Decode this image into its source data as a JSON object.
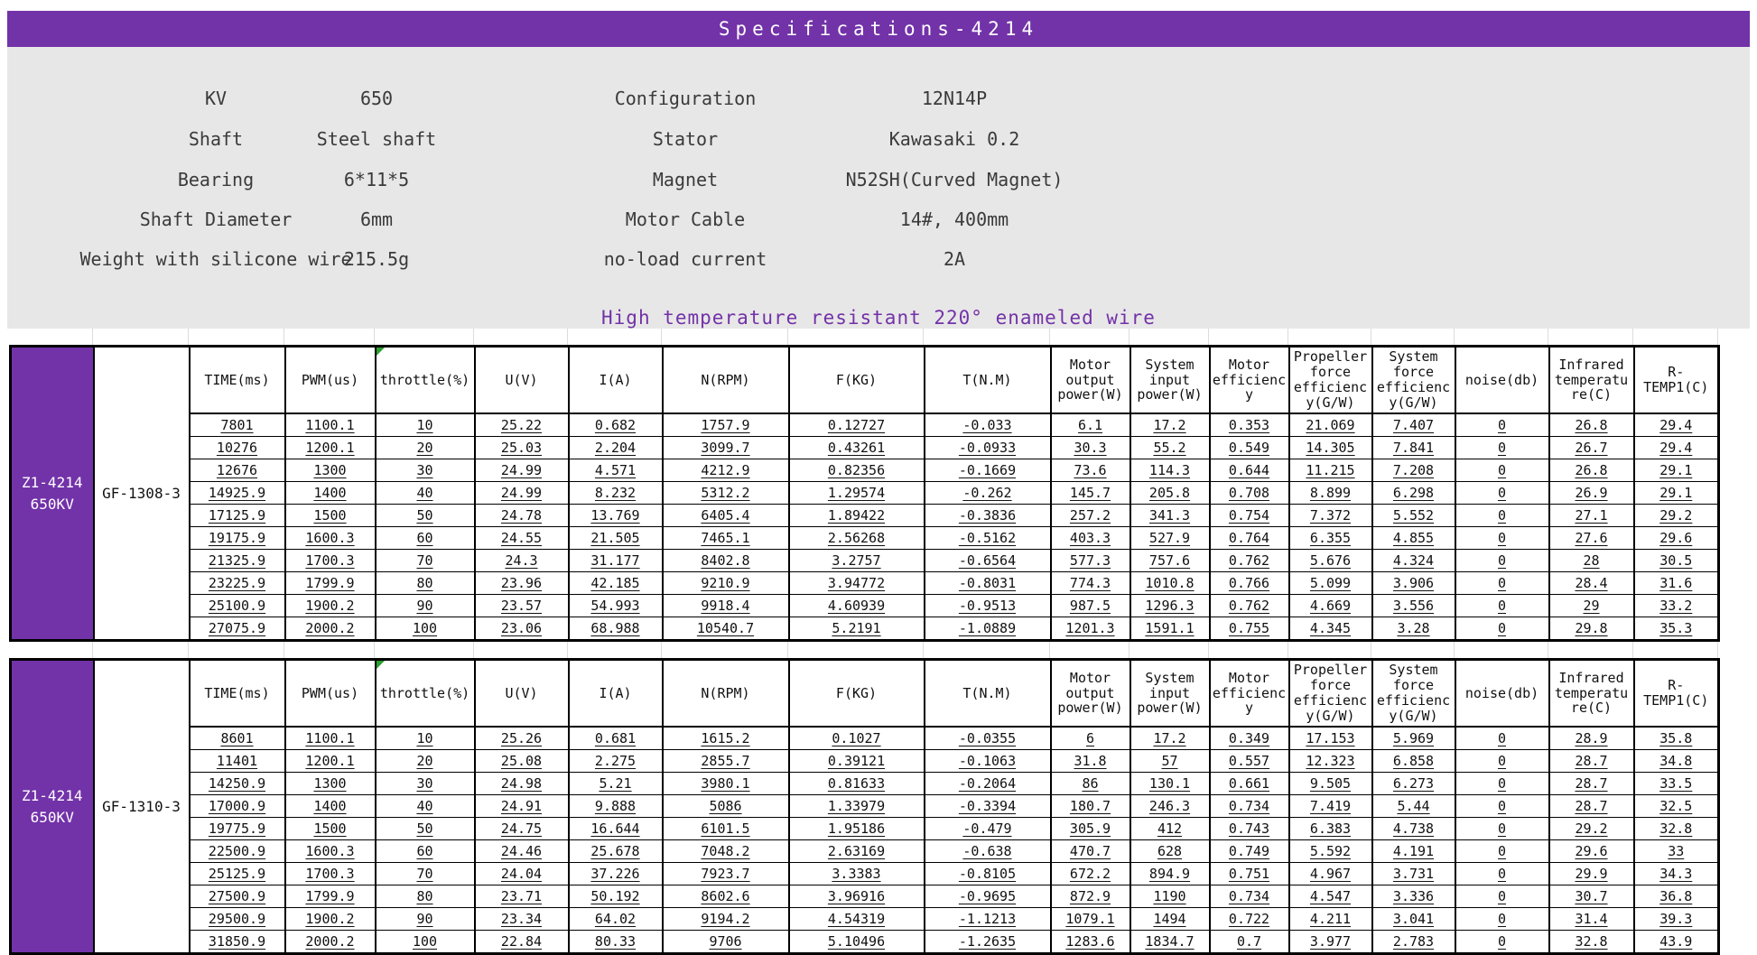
{
  "title": "Specifications-4214",
  "subtitle": "High temperature resistant 220° enameled wire",
  "colors": {
    "accent_purple": "#7232a8",
    "panel_gray": "#e8e7e7",
    "comment_flag_green": "#2e9e30",
    "table_border": "#000000"
  },
  "specs": {
    "left": [
      {
        "label": "KV",
        "value": "650"
      },
      {
        "label": "Shaft",
        "value": "Steel shaft"
      },
      {
        "label": "Bearing",
        "value": "6*11*5"
      },
      {
        "label": "Shaft Diameter",
        "value": "6mm"
      },
      {
        "label": "Weight with silicone wire",
        "value": "215.5g"
      }
    ],
    "right": [
      {
        "label": "Configuration",
        "value": "12N14P"
      },
      {
        "label": "Stator",
        "value": "Kawasaki 0.2"
      },
      {
        "label": "Magnet",
        "value": "N52SH(Curved Magnet)"
      },
      {
        "label": "Motor Cable",
        "value": "14#, 400mm"
      },
      {
        "label": "no-load current",
        "value": "2A"
      }
    ]
  },
  "table_headers": [
    "TIME(ms)",
    "PWM(us)",
    "throttle(%)",
    "U(V)",
    "I(A)",
    "N(RPM)",
    "F(KG)",
    "T(N.M)",
    "Motor output power(W)",
    "System input power(W)",
    "Motor efficiency",
    "Propeller force efficiency(G/W)",
    "System force efficiency(G/W)",
    "noise(db)",
    "Infrared temperature(C)",
    "R-TEMP1(C)"
  ],
  "tables": [
    {
      "motor_line1": "Z1-4214",
      "motor_line2": "650KV",
      "model": "GF-1308-3",
      "rows": [
        [
          "7801",
          "1100.1",
          "10",
          "25.22",
          "0.682",
          "1757.9",
          "0.12727",
          "-0.033",
          "6.1",
          "17.2",
          "0.353",
          "21.069",
          "7.407",
          "0",
          "26.8",
          "29.4"
        ],
        [
          "10276",
          "1200.1",
          "20",
          "25.03",
          "2.204",
          "3099.7",
          "0.43261",
          "-0.0933",
          "30.3",
          "55.2",
          "0.549",
          "14.305",
          "7.841",
          "0",
          "26.7",
          "29.4"
        ],
        [
          "12676",
          "1300",
          "30",
          "24.99",
          "4.571",
          "4212.9",
          "0.82356",
          "-0.1669",
          "73.6",
          "114.3",
          "0.644",
          "11.215",
          "7.208",
          "0",
          "26.8",
          "29.1"
        ],
        [
          "14925.9",
          "1400",
          "40",
          "24.99",
          "8.232",
          "5312.2",
          "1.29574",
          "-0.262",
          "145.7",
          "205.8",
          "0.708",
          "8.899",
          "6.298",
          "0",
          "26.9",
          "29.1"
        ],
        [
          "17125.9",
          "1500",
          "50",
          "24.78",
          "13.769",
          "6405.4",
          "1.89422",
          "-0.3836",
          "257.2",
          "341.3",
          "0.754",
          "7.372",
          "5.552",
          "0",
          "27.1",
          "29.2"
        ],
        [
          "19175.9",
          "1600.3",
          "60",
          "24.55",
          "21.505",
          "7465.1",
          "2.56268",
          "-0.5162",
          "403.3",
          "527.9",
          "0.764",
          "6.355",
          "4.855",
          "0",
          "27.6",
          "29.6"
        ],
        [
          "21325.9",
          "1700.3",
          "70",
          "24.3",
          "31.177",
          "8402.8",
          "3.2757",
          "-0.6564",
          "577.3",
          "757.6",
          "0.762",
          "5.676",
          "4.324",
          "0",
          "28",
          "30.5"
        ],
        [
          "23225.9",
          "1799.9",
          "80",
          "23.96",
          "42.185",
          "9210.9",
          "3.94772",
          "-0.8031",
          "774.3",
          "1010.8",
          "0.766",
          "5.099",
          "3.906",
          "0",
          "28.4",
          "31.6"
        ],
        [
          "25100.9",
          "1900.2",
          "90",
          "23.57",
          "54.993",
          "9918.4",
          "4.60939",
          "-0.9513",
          "987.5",
          "1296.3",
          "0.762",
          "4.669",
          "3.556",
          "0",
          "29",
          "33.2"
        ],
        [
          "27075.9",
          "2000.2",
          "100",
          "23.06",
          "68.988",
          "10540.7",
          "5.2191",
          "-1.0889",
          "1201.3",
          "1591.1",
          "0.755",
          "4.345",
          "3.28",
          "0",
          "29.8",
          "35.3"
        ]
      ]
    },
    {
      "motor_line1": "Z1-4214",
      "motor_line2": "650KV",
      "model": "GF-1310-3",
      "rows": [
        [
          "8601",
          "1100.1",
          "10",
          "25.26",
          "0.681",
          "1615.2",
          "0.1027",
          "-0.0355",
          "6",
          "17.2",
          "0.349",
          "17.153",
          "5.969",
          "0",
          "28.9",
          "35.8"
        ],
        [
          "11401",
          "1200.1",
          "20",
          "25.08",
          "2.275",
          "2855.7",
          "0.39121",
          "-0.1063",
          "31.8",
          "57",
          "0.557",
          "12.323",
          "6.858",
          "0",
          "28.7",
          "34.8"
        ],
        [
          "14250.9",
          "1300",
          "30",
          "24.98",
          "5.21",
          "3980.1",
          "0.81633",
          "-0.2064",
          "86",
          "130.1",
          "0.661",
          "9.505",
          "6.273",
          "0",
          "28.7",
          "33.5"
        ],
        [
          "17000.9",
          "1400",
          "40",
          "24.91",
          "9.888",
          "5086",
          "1.33979",
          "-0.3394",
          "180.7",
          "246.3",
          "0.734",
          "7.419",
          "5.44",
          "0",
          "28.7",
          "32.5"
        ],
        [
          "19775.9",
          "1500",
          "50",
          "24.75",
          "16.644",
          "6101.5",
          "1.95186",
          "-0.479",
          "305.9",
          "412",
          "0.743",
          "6.383",
          "4.738",
          "0",
          "29.2",
          "32.8"
        ],
        [
          "22500.9",
          "1600.3",
          "60",
          "24.46",
          "25.678",
          "7048.2",
          "2.63169",
          "-0.638",
          "470.7",
          "628",
          "0.749",
          "5.592",
          "4.191",
          "0",
          "29.6",
          "33"
        ],
        [
          "25125.9",
          "1700.3",
          "70",
          "24.04",
          "37.226",
          "7923.7",
          "3.3383",
          "-0.8105",
          "672.2",
          "894.9",
          "0.751",
          "4.967",
          "3.731",
          "0",
          "29.9",
          "34.3"
        ],
        [
          "27500.9",
          "1799.9",
          "80",
          "23.71",
          "50.192",
          "8602.6",
          "3.96916",
          "-0.9695",
          "872.9",
          "1190",
          "0.734",
          "4.547",
          "3.336",
          "0",
          "30.7",
          "36.8"
        ],
        [
          "29500.9",
          "1900.2",
          "90",
          "23.34",
          "64.02",
          "9194.2",
          "4.54319",
          "-1.1213",
          "1079.1",
          "1494",
          "0.722",
          "4.211",
          "3.041",
          "0",
          "31.4",
          "39.3"
        ],
        [
          "31850.9",
          "2000.2",
          "100",
          "22.84",
          "80.33",
          "9706",
          "5.10496",
          "-1.2635",
          "1283.6",
          "1834.7",
          "0.7",
          "3.977",
          "2.783",
          "0",
          "32.8",
          "43.9"
        ]
      ]
    }
  ]
}
